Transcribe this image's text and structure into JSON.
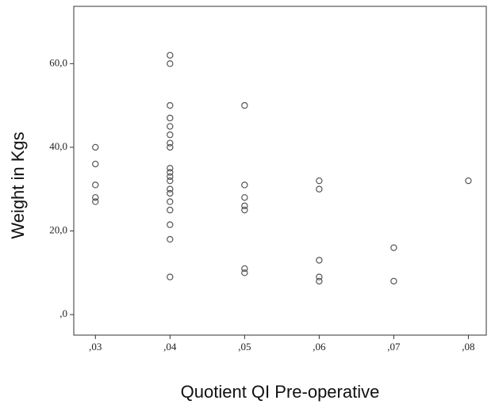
{
  "chart_data": {
    "type": "scatter",
    "x_label": "Quotient QI Pre-operative",
    "y_label": "Weight in Kgs",
    "x": [
      0.03,
      0.03,
      0.03,
      0.03,
      0.03,
      0.04,
      0.04,
      0.04,
      0.04,
      0.04,
      0.04,
      0.04,
      0.04,
      0.04,
      0.04,
      0.04,
      0.04,
      0.04,
      0.04,
      0.04,
      0.04,
      0.04,
      0.04,
      0.04,
      0.05,
      0.05,
      0.05,
      0.05,
      0.05,
      0.05,
      0.05,
      0.06,
      0.06,
      0.06,
      0.06,
      0.06,
      0.07,
      0.07,
      0.08
    ],
    "values": [
      40,
      36,
      31,
      28,
      27,
      62,
      60,
      50,
      47,
      45,
      43,
      41,
      40,
      35,
      34,
      33,
      32,
      30,
      29,
      27,
      25,
      21.5,
      18,
      9,
      50,
      31,
      28,
      26,
      25,
      11,
      10,
      32,
      30,
      13,
      9,
      8,
      16,
      8,
      32
    ],
    "color": "#555555",
    "xlim": [
      0.0271,
      0.0824
    ],
    "ylim": [
      -4.9,
      73.7
    ],
    "xticks": [
      {
        "value": 0.03,
        "label": ",03"
      },
      {
        "value": 0.04,
        "label": ",04"
      },
      {
        "value": 0.05,
        "label": ",05"
      },
      {
        "value": 0.06,
        "label": ",06"
      },
      {
        "value": 0.07,
        "label": ",07"
      },
      {
        "value": 0.08,
        "label": ",08"
      }
    ],
    "yticks": [
      {
        "value": 0,
        "label": ",0"
      },
      {
        "value": 20,
        "label": "20,0"
      },
      {
        "value": 40,
        "label": "40,0"
      },
      {
        "value": 60,
        "label": "60,0"
      }
    ]
  }
}
